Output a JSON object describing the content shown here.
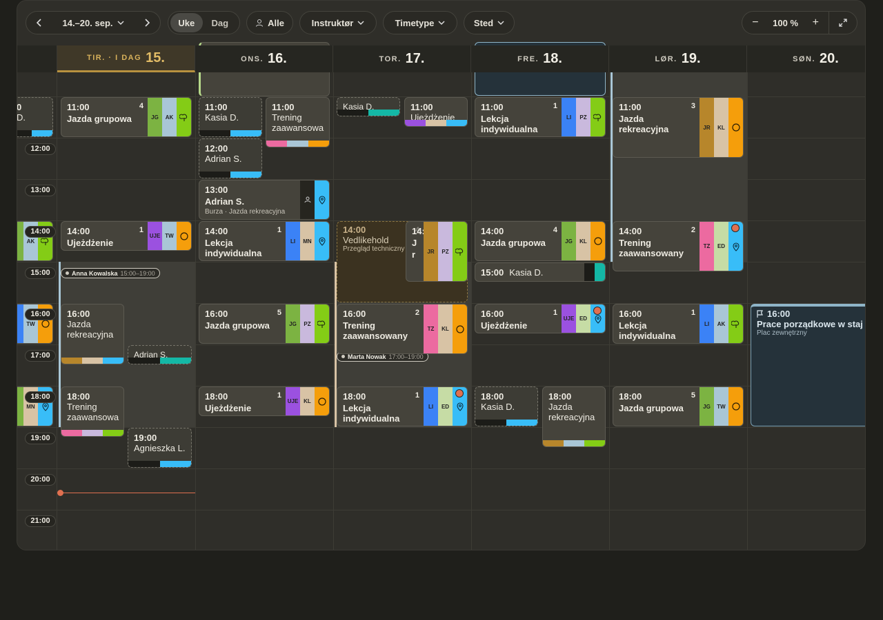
{
  "toolbar": {
    "range": "14.–20. sep.",
    "views": [
      "Uke",
      "Dag"
    ],
    "filters": [
      "Alle",
      "Instruktør",
      "Timetype",
      "Sted"
    ],
    "zoom_out": "−",
    "zoom": "100 %",
    "zoom_in": "+"
  },
  "days": [
    {
      "name": "TIR. · I DAG",
      "date": "15."
    },
    {
      "name": "ONS.",
      "date": "16."
    },
    {
      "name": "TOR.",
      "date": "17."
    },
    {
      "name": "FRE.",
      "date": "18."
    },
    {
      "name": "LØR.",
      "date": "19."
    },
    {
      "name": "SØN.",
      "date": "20."
    }
  ],
  "times": [
    "12:00",
    "13:00",
    "14:00",
    "15:00",
    "16:00",
    "17:00",
    "18:00",
    "19:00",
    "20:00",
    "21:00"
  ],
  "availability": [
    {
      "name": "Anna Kowalska",
      "time": "15:00–19:00"
    },
    {
      "name": "Marta Nowak",
      "time": "17:00–19:00"
    }
  ],
  "tag_colors": {
    "JG": "#7cb342",
    "AK": "#a9c6d6",
    "TW": "#a9c6d6",
    "KL": "#d8c3a5",
    "PZ": "#c9b9dd",
    "LI": "#3b82f6",
    "MN": "#d8c3a5",
    "UJE": "#9b51e0",
    "JR": "#b7862b",
    "TZ": "#ec6aa0",
    "ED": "#c6dca5"
  },
  "events": [
    {
      "kind": "mini",
      "dashed": true,
      "time": "0",
      "title": "D.",
      "strip": [
        "#1c1c18",
        "#38bdf8"
      ]
    },
    {
      "kind": "card",
      "lead": "#7cb342",
      "tags": [
        "AK"
      ],
      "icon": "tree"
    },
    {
      "kind": "card",
      "lead": "#3b82f6",
      "tags": [
        "TW"
      ],
      "icon": "circle"
    },
    {
      "kind": "card",
      "lead": "#7cb342",
      "tags": [
        "MN"
      ],
      "icon": "pin"
    },
    {
      "kind": "card",
      "time": "11:00",
      "title": "Jazda grupowa",
      "count": 4,
      "tags": [
        "JG",
        "AK"
      ],
      "icon": "tree"
    },
    {
      "kind": "card",
      "time": "14:00",
      "title": "Ujeżdżenie",
      "count": 1,
      "tags": [
        "UJE",
        "TW"
      ],
      "icon": "circle"
    },
    {
      "kind": "mini",
      "time": "16:00",
      "title": "Jazda rekreacyjna",
      "strip": [
        "#b7862b",
        "#d8c3a5",
        "#38bdf8"
      ]
    },
    {
      "kind": "mini",
      "dashed": true,
      "title": "Adrian S.",
      "strip": [
        "#1c1c18",
        "#14b8a6"
      ]
    },
    {
      "kind": "mini",
      "time": "18:00",
      "title": "Trening zaawansowa",
      "strip": [
        "#ec6aa0",
        "#c9b9dd",
        "#84cc16"
      ]
    },
    {
      "kind": "mini",
      "dashed": true,
      "time": "19:00",
      "title": "Agnieszka L.",
      "strip": [
        "#1c1c18",
        "#38bdf8"
      ]
    },
    {
      "kind": "plain",
      "edge": "#b6d98a"
    },
    {
      "kind": "mini",
      "dashed": true,
      "time": "11:00",
      "title": "Kasia D.",
      "strip": [
        "#1c1c18",
        "#38bdf8"
      ]
    },
    {
      "kind": "mini",
      "time": "11:00",
      "title": "Trening zaawansowa",
      "strip": [
        "#ec6aa0",
        "#a9c6d6",
        "#f59e0b"
      ]
    },
    {
      "kind": "mini",
      "dashed": true,
      "time": "12:00",
      "title": "Adrian S.",
      "strip": [
        "#1c1c18",
        "#38bdf8"
      ]
    },
    {
      "kind": "card",
      "time": "13:00",
      "title": "Adrian S.",
      "sub": "Burza · Jazda rekreacyjna",
      "tags": [],
      "icon": "person",
      "icon2": "pin"
    },
    {
      "kind": "card",
      "time": "14:00",
      "title": "Lekcja indywidualna",
      "count": 1,
      "tags": [
        "LI",
        "MN"
      ],
      "icon": "pin"
    },
    {
      "kind": "card",
      "time": "16:00",
      "title": "Jazda grupowa",
      "count": 5,
      "tags": [
        "JG",
        "PZ"
      ],
      "icon": "tree"
    },
    {
      "kind": "card",
      "time": "18:00",
      "title": "Ujeżdżenie",
      "count": 1,
      "tags": [
        "UJE",
        "KL"
      ],
      "icon": "circle"
    },
    {
      "kind": "mini",
      "dashed": true,
      "title": "Kasia D.",
      "strip": [
        "#1c1c18",
        "#14b8a6"
      ]
    },
    {
      "kind": "mini",
      "time": "11:00",
      "title": "Ujeżdżenie",
      "strip": [
        "#9b51e0",
        "#d8c3a5",
        "#38bdf8"
      ]
    },
    {
      "kind": "block",
      "time": "14:00",
      "title": "Vedlikehold",
      "sub": "Przegląd techniczny"
    },
    {
      "kind": "card",
      "time": "14:00",
      "title": [
        "J",
        "r"
      ],
      "count": 4,
      "tags": [
        "JR",
        "PZ"
      ],
      "icon": "tree"
    },
    {
      "kind": "card",
      "time": "16:00",
      "title": "Trening zaawansowany",
      "count": 2,
      "tags": [
        "TZ",
        "KL"
      ],
      "icon": "circle"
    },
    {
      "kind": "card",
      "time": "18:00",
      "title": "Lekcja indywidualna",
      "count": 1,
      "tags": [
        "LI",
        "ED"
      ],
      "icon": "pin",
      "dot": true
    },
    {
      "kind": "plain",
      "blue": true
    },
    {
      "kind": "card",
      "time": "11:00",
      "title": "Lekcja indywidualna",
      "count": 1,
      "tags": [
        "LI",
        "PZ"
      ],
      "icon": "tree"
    },
    {
      "kind": "card",
      "time": "14:00",
      "title": "Jazda grupowa",
      "count": 4,
      "tags": [
        "JG",
        "KL"
      ],
      "icon": "circle"
    },
    {
      "kind": "inline",
      "time": "15:00",
      "title": "Kasia D.",
      "strip": [
        "#1c1c18",
        "#14b8a6"
      ]
    },
    {
      "kind": "card",
      "time": "16:00",
      "title": "Ujeżdżenie",
      "count": 1,
      "tags": [
        "UJE",
        "ED"
      ],
      "icon": "pin",
      "dot": true
    },
    {
      "kind": "mini",
      "dashed": true,
      "time": "18:00",
      "title": "Kasia D.",
      "strip": [
        "#1c1c18",
        "#38bdf8"
      ]
    },
    {
      "kind": "mini",
      "time": "18:00",
      "title": "Jazda rekreacyjna",
      "strip": [
        "#b7862b",
        "#a9c6d6",
        "#84cc16"
      ]
    },
    {
      "kind": "card",
      "time": "11:00",
      "title": "Jazda rekreacyjna",
      "count": 3,
      "tags": [
        "JR",
        "KL"
      ],
      "icon": "circle"
    },
    {
      "kind": "card",
      "time": "14:00",
      "title": "Trening zaawansowany",
      "count": 2,
      "tags": [
        "TZ",
        "ED"
      ],
      "icon": "pin",
      "dot": true
    },
    {
      "kind": "card",
      "time": "16:00",
      "title": "Lekcja indywidualna",
      "count": 1,
      "tags": [
        "LI",
        "AK"
      ],
      "icon": "tree"
    },
    {
      "kind": "card",
      "time": "18:00",
      "title": "Jazda grupowa",
      "count": 5,
      "tags": [
        "JG",
        "TW"
      ],
      "icon": "circle"
    },
    {
      "kind": "task",
      "time": "16:00",
      "title": "Prace porządkowe w staj",
      "sub": "Plac zewnętrzny"
    }
  ]
}
